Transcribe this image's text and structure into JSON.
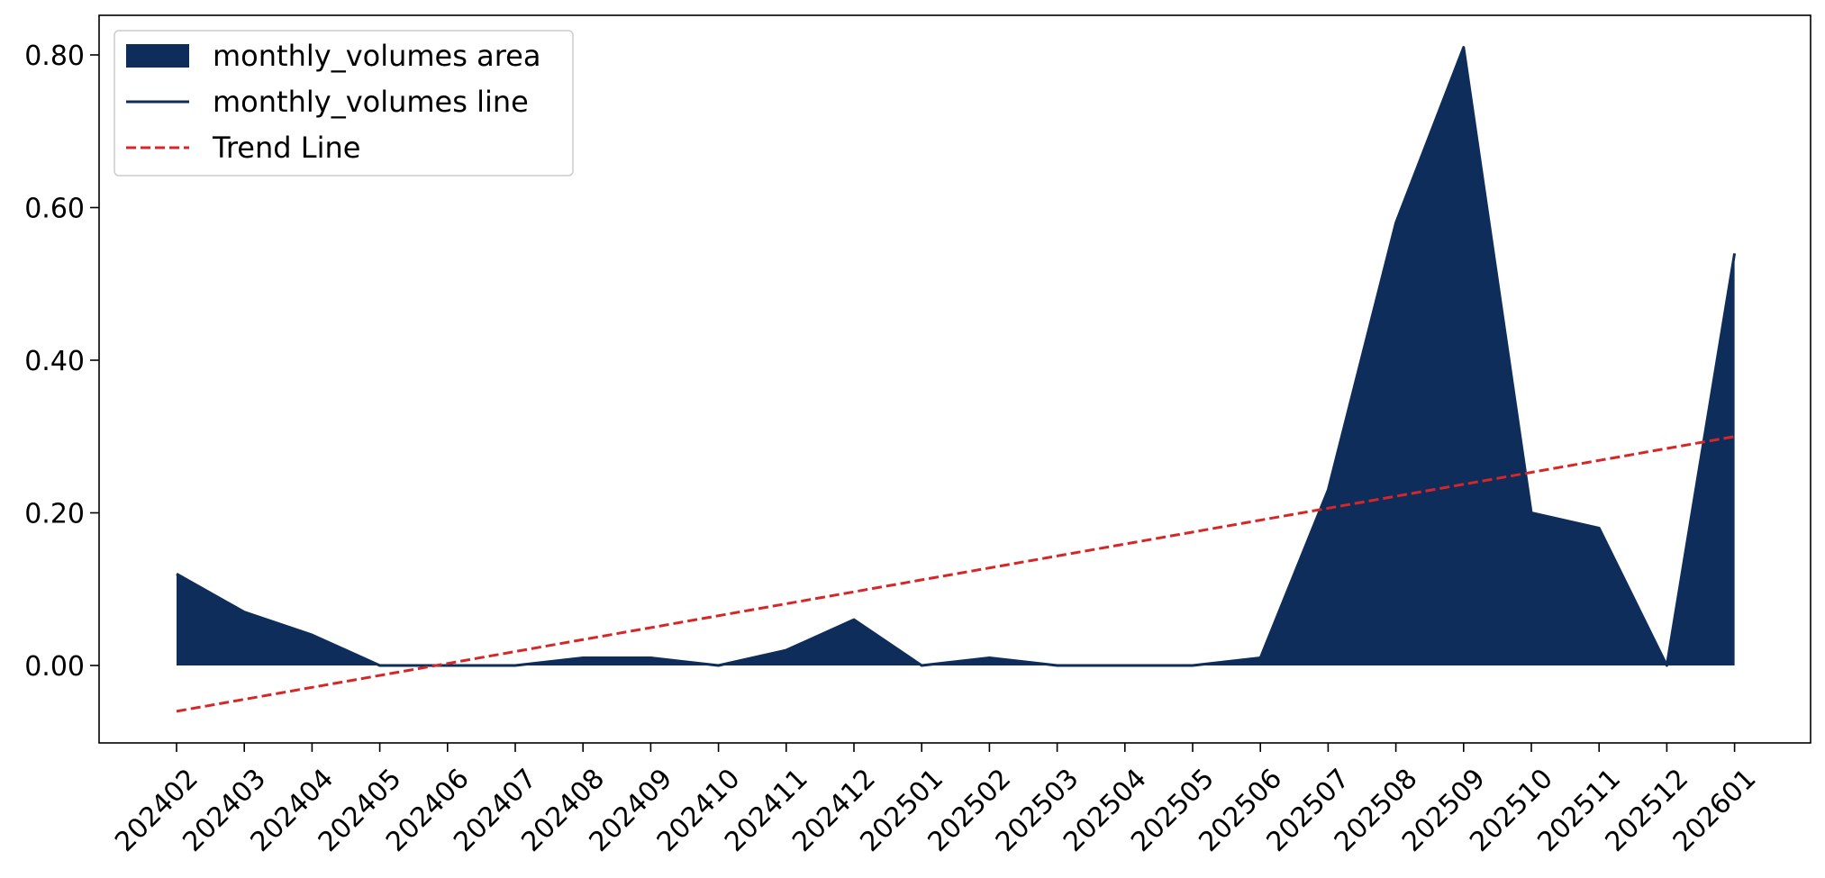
{
  "chart_data": {
    "type": "area",
    "categories": [
      "202402",
      "202403",
      "202404",
      "202405",
      "202406",
      "202407",
      "202408",
      "202409",
      "202410",
      "202411",
      "202412",
      "202501",
      "202502",
      "202503",
      "202504",
      "202505",
      "202506",
      "202507",
      "202508",
      "202509",
      "202510",
      "202511",
      "202512",
      "202601"
    ],
    "series": [
      {
        "name": "monthly_volumes area",
        "kind": "area",
        "color": "#0e2d5b",
        "values": [
          0.12,
          0.07,
          0.04,
          0.0,
          0.0,
          0.0,
          0.01,
          0.01,
          0.0,
          0.02,
          0.06,
          0.0,
          0.01,
          0.0,
          0.0,
          0.0,
          0.01,
          0.23,
          0.58,
          0.81,
          0.2,
          0.18,
          0.0,
          0.54
        ]
      },
      {
        "name": "monthly_volumes line",
        "kind": "line",
        "color": "#0e2d5b",
        "values": [
          0.12,
          0.07,
          0.04,
          0.0,
          0.0,
          0.0,
          0.01,
          0.01,
          0.0,
          0.02,
          0.06,
          0.0,
          0.01,
          0.0,
          0.0,
          0.0,
          0.01,
          0.23,
          0.58,
          0.81,
          0.2,
          0.18,
          0.0,
          0.54
        ]
      },
      {
        "name": "Trend Line",
        "kind": "trend",
        "color": "#d62728",
        "start": -0.06,
        "end": 0.3
      }
    ],
    "title": "",
    "xlabel": "",
    "ylabel": "",
    "ylim": [
      -0.1,
      0.85
    ],
    "yticks": [
      "0.00",
      "0.20",
      "0.40",
      "0.60",
      "0.80"
    ],
    "ytick_values": [
      0.0,
      0.2,
      0.4,
      0.6,
      0.8
    ],
    "grid": false,
    "legend_position": "top-left"
  }
}
